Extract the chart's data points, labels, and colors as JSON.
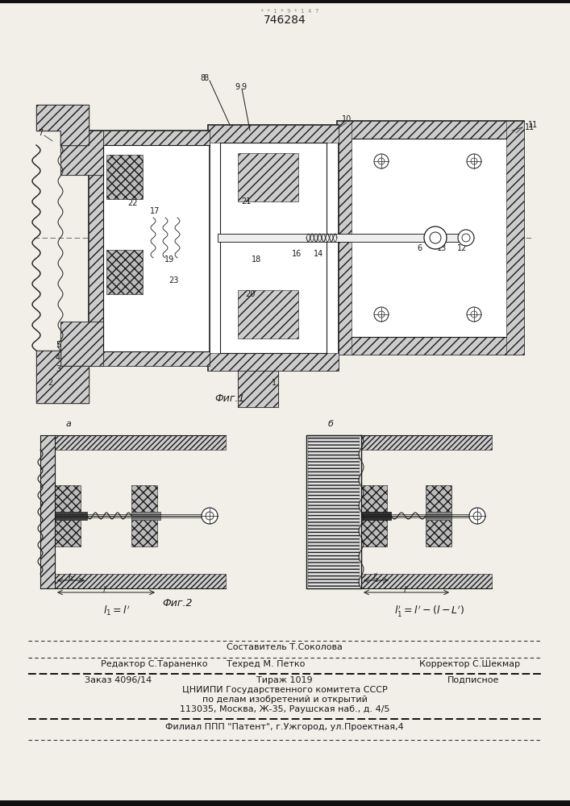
{
  "patent_number": "746284",
  "fig1_caption": "Фиг.1",
  "fig2_caption": "Фиг.2",
  "fig2a_label": "а",
  "fig2b_label": "б",
  "footer_line1": "Составитель Т.Соколова",
  "footer_line2_left": "Редактор С.Тараненко",
  "footer_line2_mid": "Техред М. Петко",
  "footer_line2_right": "Корректор С.Шекмар",
  "footer_line3_left": "Заказ 4096/14",
  "footer_line3_mid": "Тираж 1019",
  "footer_line3_right": "Подписное",
  "footer_line4": "ЦНИИПИ Государственного комитета СССР",
  "footer_line5": "по делам изобретений и открытий",
  "footer_line6": "113035, Москва, Ж-35, Раушская наб., д. 4/5",
  "footer_line7": "Филиал ППП \"Патент\", г.Ужгород, ул.Проектная,4",
  "bg_color": "#f2efe9",
  "lc": "#1a1a1a",
  "hc": "#444444"
}
